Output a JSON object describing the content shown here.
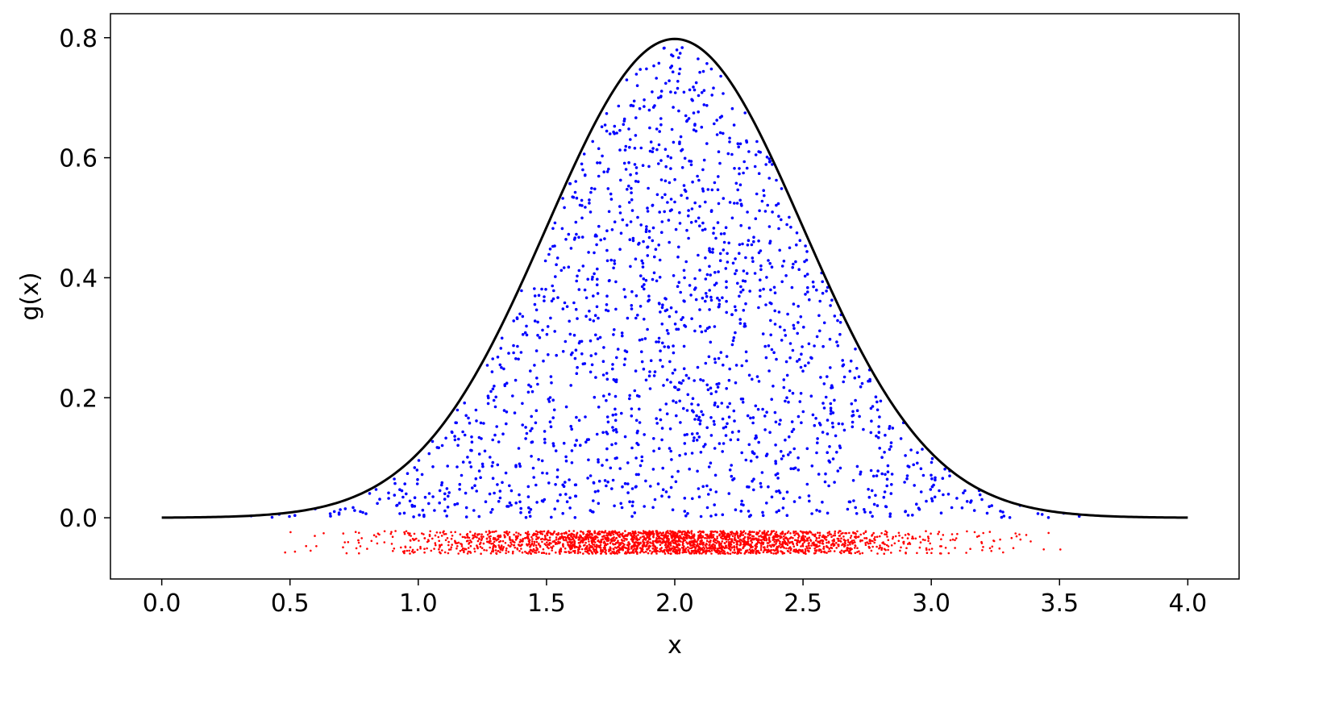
{
  "chart_data": {
    "type": "scatter",
    "title": "",
    "xlabel": "x",
    "ylabel": "g(x)",
    "xlim": [
      -0.2,
      4.2
    ],
    "ylim": [
      -0.102,
      0.84
    ],
    "xticks": [
      0.0,
      0.5,
      1.0,
      1.5,
      2.0,
      2.5,
      3.0,
      3.5,
      4.0
    ],
    "xtick_labels": [
      "0.0",
      "0.5",
      "1.0",
      "1.5",
      "2.0",
      "2.5",
      "3.0",
      "3.5",
      "4.0"
    ],
    "yticks": [
      0.0,
      0.2,
      0.4,
      0.6,
      0.8
    ],
    "ytick_labels": [
      "0.0",
      "0.2",
      "0.4",
      "0.6",
      "0.8"
    ],
    "grid": false,
    "curve": {
      "name": "g(x)",
      "kind": "gaussian",
      "mean": 2.0,
      "sigma": 0.5,
      "x_range": [
        0.0,
        4.0
      ],
      "peak": 0.798,
      "color": "#000000"
    },
    "series": [
      {
        "role": "accepted samples under g(x)",
        "color": "#0000ff",
        "count": 1700,
        "y_range": [
          0.0,
          "g(x)"
        ]
      },
      {
        "role": "sample positions rug",
        "color": "#ff0000",
        "count": 2500,
        "y_range": [
          -0.06,
          -0.022
        ]
      }
    ]
  }
}
